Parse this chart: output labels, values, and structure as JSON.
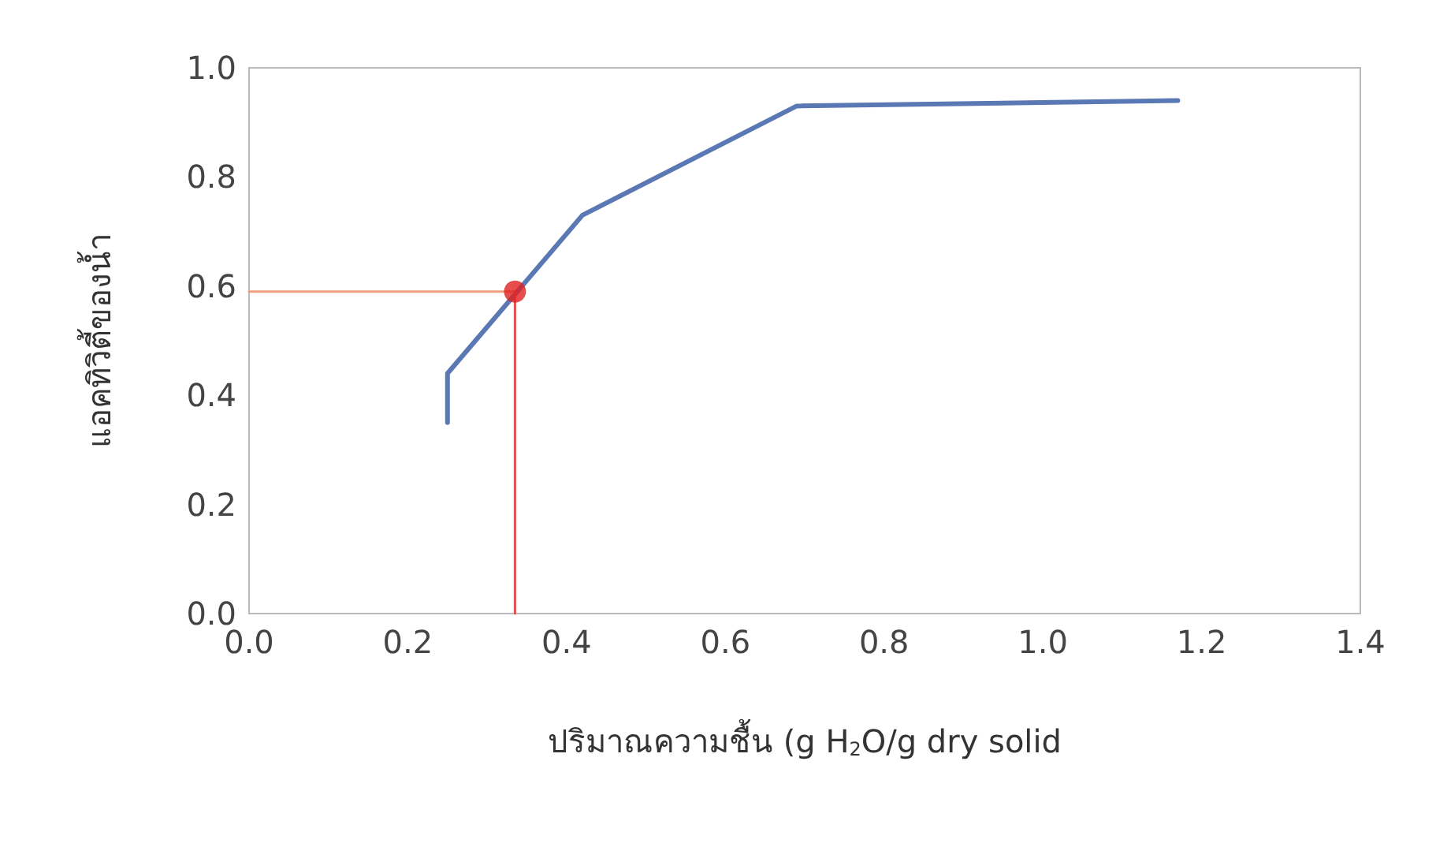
{
  "chart_data": {
    "type": "line",
    "xlabel": "ปริมาณความชื้น (g H$_{2}$O/g dry solid",
    "ylabel": "แอคทิวิตี้ของน้ำ",
    "xlim": [
      0,
      1.4
    ],
    "xticks": [
      {
        "value": 0,
        "label": "0.0"
      },
      {
        "value": 0.2,
        "label": "0.2"
      },
      {
        "value": 0.4,
        "label": "0.4"
      },
      {
        "value": 0.6,
        "label": "0.6"
      },
      {
        "value": 0.8,
        "label": "0.8"
      },
      {
        "value": 1,
        "label": "1.0"
      },
      {
        "value": 1.2,
        "label": "1.2"
      },
      {
        "value": 1.4,
        "label": "1.4"
      }
    ],
    "ylim": [
      0,
      1
    ],
    "yticks": [
      {
        "value": 0,
        "label": "0.0"
      },
      {
        "value": 0.2,
        "label": "0.2"
      },
      {
        "value": 0.4,
        "label": "0.4"
      },
      {
        "value": 0.6,
        "label": "0.6"
      },
      {
        "value": 0.8,
        "label": "0.8"
      },
      {
        "value": 1,
        "label": "1.0"
      }
    ],
    "marker": "none",
    "series": [
      {
        "color": "#5a78b4",
        "x": [
          0.25,
          0.25,
          0.42,
          0.69,
          1.17
        ],
        "values": [
          0.35,
          0.44,
          0.73,
          0.93,
          0.94
        ]
      },
      {
        "color": "#f0a080",
        "x": [
          0,
          0.335
        ],
        "values": [
          0.59,
          0.59
        ]
      },
      {
        "color": "#e05050",
        "x": [
          0.335,
          0.335
        ],
        "values": [
          0.59,
          0
        ]
      },
      {
        "type": "scatter",
        "color": "#e02020",
        "marker": "circle",
        "x": [
          0.335
        ],
        "values": [
          0.59
        ]
      }
    ]
  }
}
